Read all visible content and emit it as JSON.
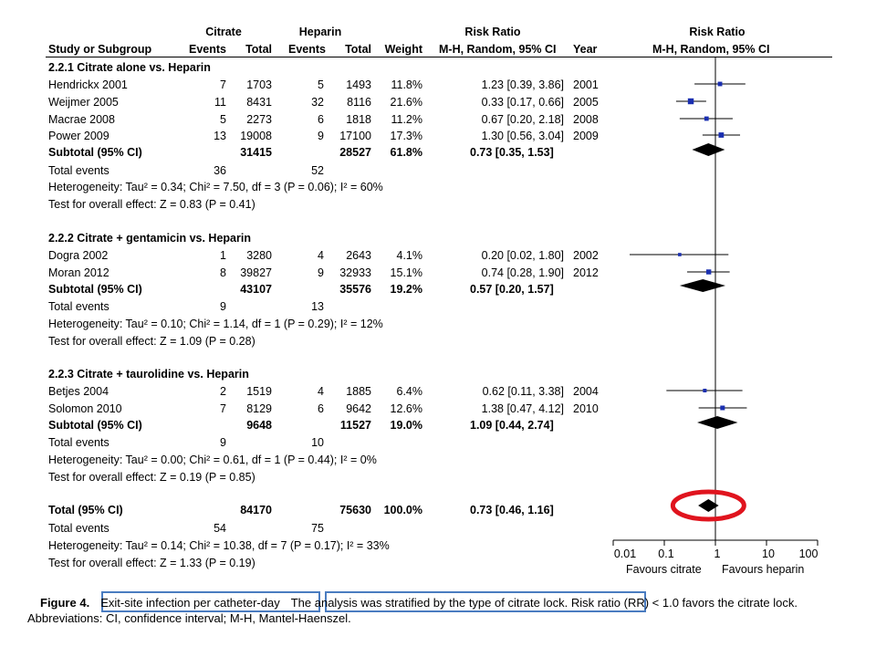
{
  "header": {
    "group1": "Citrate",
    "group2": "Heparin",
    "rr_top": "Risk Ratio",
    "rr_plot_top": "Risk Ratio",
    "col_study": "Study or Subgroup",
    "col_events1": "Events",
    "col_total1": "Total",
    "col_events2": "Events",
    "col_total2": "Total",
    "col_weight": "Weight",
    "col_rr": "M-H, Random, 95% CI",
    "col_year": "Year",
    "col_rr_plot": "M-H, Random, 95% CI"
  },
  "subgroups": [
    {
      "title": "2.2.1 Citrate alone vs. Heparin",
      "studies": [
        {
          "name": "Hendrickx 2001",
          "e1": "7",
          "t1": "1703",
          "e2": "5",
          "t2": "1493",
          "w": "11.8%",
          "ci": "1.23 [0.39, 3.86]",
          "year": "2001"
        },
        {
          "name": "Weijmer 2005",
          "e1": "11",
          "t1": "8431",
          "e2": "32",
          "t2": "8116",
          "w": "21.6%",
          "ci": "0.33 [0.17, 0.66]",
          "year": "2005"
        },
        {
          "name": "Macrae 2008",
          "e1": "5",
          "t1": "2273",
          "e2": "6",
          "t2": "1818",
          "w": "11.2%",
          "ci": "0.67 [0.20, 2.18]",
          "year": "2008"
        },
        {
          "name": "Power 2009",
          "e1": "13",
          "t1": "19008",
          "e2": "9",
          "t2": "17100",
          "w": "17.3%",
          "ci": "1.30 [0.56, 3.04]",
          "year": "2009"
        }
      ],
      "subtotal": {
        "label": "Subtotal (95% CI)",
        "t1": "31415",
        "t2": "28527",
        "w": "61.8%",
        "ci": "0.73 [0.35, 1.53]"
      },
      "events": {
        "label": "Total events",
        "e1": "36",
        "e2": "52"
      },
      "het": "Heterogeneity: Tau² = 0.34; Chi² = 7.50, df = 3 (P = 0.06); I² = 60%",
      "test": "Test for overall effect: Z = 0.83 (P = 0.41)"
    },
    {
      "title": "2.2.2 Citrate + gentamicin vs. Heparin",
      "studies": [
        {
          "name": "Dogra 2002",
          "e1": "1",
          "t1": "3280",
          "e2": "4",
          "t2": "2643",
          "w": "4.1%",
          "ci": "0.20 [0.02, 1.80]",
          "year": "2002"
        },
        {
          "name": "Moran 2012",
          "e1": "8",
          "t1": "39827",
          "e2": "9",
          "t2": "32933",
          "w": "15.1%",
          "ci": "0.74 [0.28, 1.90]",
          "year": "2012"
        }
      ],
      "subtotal": {
        "label": "Subtotal (95% CI)",
        "t1": "43107",
        "t2": "35576",
        "w": "19.2%",
        "ci": "0.57 [0.20, 1.57]"
      },
      "events": {
        "label": "Total events",
        "e1": "9",
        "e2": "13"
      },
      "het": "Heterogeneity: Tau² = 0.10; Chi² = 1.14, df = 1 (P = 0.29); I² = 12%",
      "test": "Test for overall effect: Z = 1.09 (P = 0.28)"
    },
    {
      "title": "2.2.3 Citrate + taurolidine vs. Heparin",
      "studies": [
        {
          "name": "Betjes 2004",
          "e1": "2",
          "t1": "1519",
          "e2": "4",
          "t2": "1885",
          "w": "6.4%",
          "ci": "0.62 [0.11, 3.38]",
          "year": "2004"
        },
        {
          "name": "Solomon 2010",
          "e1": "7",
          "t1": "8129",
          "e2": "6",
          "t2": "9642",
          "w": "12.6%",
          "ci": "1.38 [0.47, 4.12]",
          "year": "2010"
        }
      ],
      "subtotal": {
        "label": "Subtotal (95% CI)",
        "t1": "9648",
        "t2": "11527",
        "w": "19.0%",
        "ci": "1.09 [0.44, 2.74]"
      },
      "events": {
        "label": "Total events",
        "e1": "9",
        "e2": "10"
      },
      "het": "Heterogeneity: Tau² = 0.00; Chi² = 0.61, df = 1 (P = 0.44); I² = 0%",
      "test": "Test for overall effect: Z = 0.19 (P = 0.85)"
    }
  ],
  "overall": {
    "label": "Total (95% CI)",
    "t1": "84170",
    "t2": "75630",
    "w": "100.0%",
    "ci": "0.73 [0.46, 1.16]",
    "events_label": "Total events",
    "e1": "54",
    "e2": "75",
    "het": "Heterogeneity: Tau² = 0.14; Chi² = 10.38, df = 7 (P = 0.17); I² = 33%",
    "test": "Test for overall effect: Z = 1.33 (P = 0.19)"
  },
  "axis": {
    "ticks": [
      "0.01",
      "0.1",
      "1",
      "10",
      "100"
    ],
    "favours_left": "Favours citrate",
    "favours_right": "Favours heparin"
  },
  "caption": {
    "fig_label": "Figure 4.",
    "part1": "Exit-site infection per catheter-day",
    "part2": "The analysis was stratified by the type of citrate lock.",
    "part3": "Risk ratio (RR) < 1.0 favors the citrate lock. Abbreviations: CI, confidence interval; M-H, Mantel-Haenszel."
  },
  "colors": {
    "study_marker": "#1a2fb0",
    "diamond": "#000000",
    "highlight_ellipse": "#e0141e",
    "caption_box": "#4a7cc0"
  },
  "chart_data": {
    "type": "forest",
    "scale": "log",
    "xlim": [
      0.01,
      100
    ],
    "reference_line": 1,
    "studies": [
      {
        "name": "Hendrickx 2001",
        "rr": 1.23,
        "lo": 0.39,
        "hi": 3.86,
        "weight": 11.8
      },
      {
        "name": "Weijmer 2005",
        "rr": 0.33,
        "lo": 0.17,
        "hi": 0.66,
        "weight": 21.6
      },
      {
        "name": "Macrae 2008",
        "rr": 0.67,
        "lo": 0.2,
        "hi": 2.18,
        "weight": 11.2
      },
      {
        "name": "Power 2009",
        "rr": 1.3,
        "lo": 0.56,
        "hi": 3.04,
        "weight": 17.3
      },
      {
        "name": "Dogra 2002",
        "rr": 0.2,
        "lo": 0.02,
        "hi": 1.8,
        "weight": 4.1
      },
      {
        "name": "Moran 2012",
        "rr": 0.74,
        "lo": 0.28,
        "hi": 1.9,
        "weight": 15.1
      },
      {
        "name": "Betjes 2004",
        "rr": 0.62,
        "lo": 0.11,
        "hi": 3.38,
        "weight": 6.4
      },
      {
        "name": "Solomon 2010",
        "rr": 1.38,
        "lo": 0.47,
        "hi": 4.12,
        "weight": 12.6
      }
    ],
    "subtotals": [
      {
        "name": "2.2.1 Subtotal",
        "rr": 0.73,
        "lo": 0.35,
        "hi": 1.53
      },
      {
        "name": "2.2.2 Subtotal",
        "rr": 0.57,
        "lo": 0.2,
        "hi": 1.57
      },
      {
        "name": "2.2.3 Subtotal",
        "rr": 1.09,
        "lo": 0.44,
        "hi": 2.74
      }
    ],
    "overall": {
      "name": "Total",
      "rr": 0.73,
      "lo": 0.46,
      "hi": 1.16
    }
  }
}
